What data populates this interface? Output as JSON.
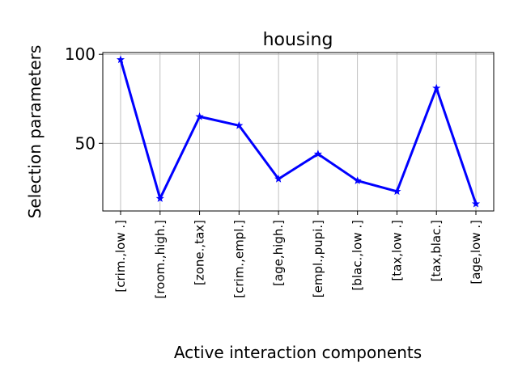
{
  "chart_data": {
    "type": "line",
    "title": "housing",
    "xlabel": "Active interaction components",
    "ylabel": "Selection parameters",
    "categories": [
      "[crim.,low .]",
      "[room.,high.]",
      "[zone.,tax]",
      "[crim.,empl.]",
      "[age,high.]",
      "[empl.,pupi.]",
      "[blac.,low .]",
      "[tax,low .]",
      "[tax,blac.]",
      "[age,low .]"
    ],
    "series": [
      {
        "values": [
          97,
          19,
          65,
          60,
          30,
          44,
          29,
          23,
          81,
          16
        ],
        "color": "#0000ff",
        "marker": "star"
      }
    ],
    "yticks": [
      50,
      100
    ],
    "ylim": [
      12,
      101
    ],
    "grid": true
  }
}
